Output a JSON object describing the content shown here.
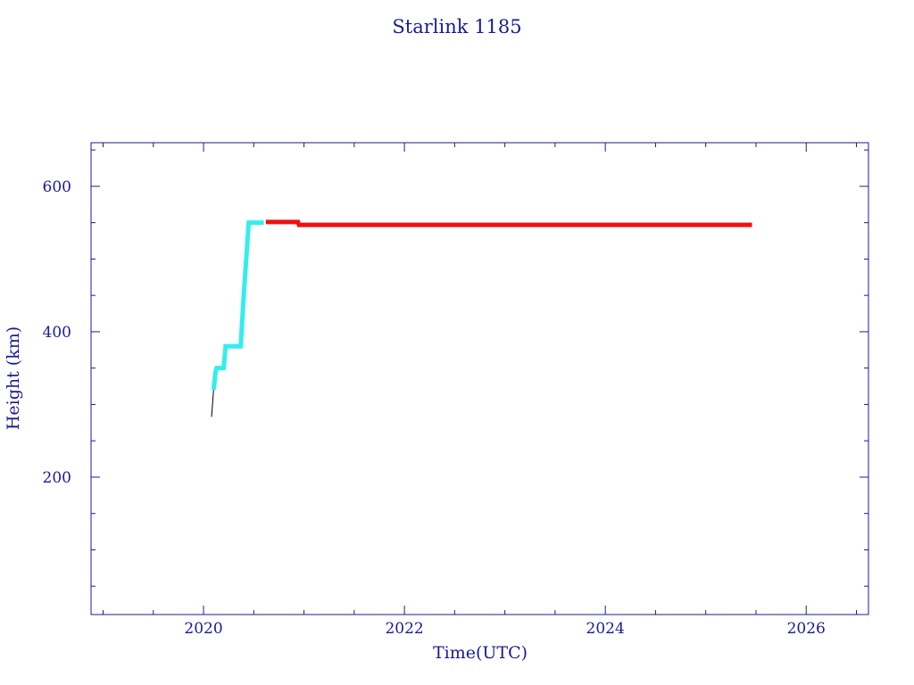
{
  "chart_data": {
    "type": "line",
    "title": "Starlink 1185",
    "x_label": "Time(UTC)",
    "y_label": "Height (km)",
    "xlim": [
      2018.88,
      2026.62
    ],
    "ylim": [
      11,
      660
    ],
    "xticks": [
      2020,
      2022,
      2024,
      2026
    ],
    "xminorticks": [
      2019,
      2019.5,
      2020.5,
      2021,
      2021.5,
      2022.5,
      2023,
      2023.5,
      2024.5,
      2025,
      2025.5,
      2026.5
    ],
    "yticks": [
      200,
      400,
      600
    ],
    "yminorticks": [
      50,
      100,
      150,
      250,
      300,
      350,
      450,
      500,
      550,
      650
    ],
    "axis_color": "#1a1a9c",
    "series": [
      {
        "color": "#000000",
        "width": 1,
        "x": [
          2020.08,
          2020.1
        ],
        "values": [
          283,
          320
        ]
      },
      {
        "color": "#33eeee",
        "width": 5,
        "x": [
          2020.1,
          2020.12,
          2020.13,
          2020.2,
          2020.22,
          2020.37,
          2020.4,
          2020.45,
          2020.6
        ],
        "values": [
          320,
          345,
          350,
          350,
          380,
          380,
          450,
          550,
          550
        ]
      },
      {
        "color": "#ee1111",
        "width": 5,
        "x": [
          2020.62,
          2020.94,
          2020.95,
          2025.46
        ],
        "values": [
          551,
          551,
          547,
          547
        ]
      }
    ]
  }
}
